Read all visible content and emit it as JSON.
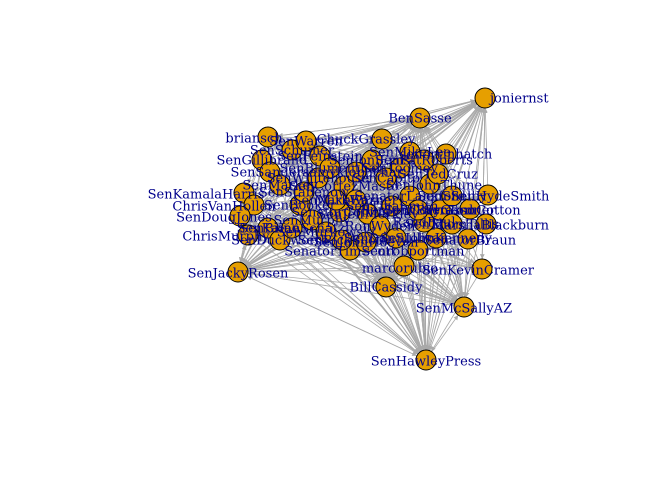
{
  "colors": {
    "node_fill": "#e69f00",
    "node_border": "#000000",
    "edge": "#a9a9a9",
    "label": "#00008b",
    "background": "#ffffff"
  },
  "graph": {
    "type": "network",
    "directed": true,
    "labeled_nodes": [
      {
        "id": "joniernst",
        "label": "joniernst"
      },
      {
        "id": "bensasse",
        "label": "BenSasse"
      },
      {
        "id": "briansch",
        "label": "briansch"
      },
      {
        "id": "chuckgrassley",
        "label": "ChuckGrassley"
      },
      {
        "id": "senjackyrosen",
        "label": "SenJackyRosen"
      },
      {
        "id": "chrismurphy",
        "label": "ChrisMurphy"
      },
      {
        "id": "billcassidy",
        "label": "BillCassidy"
      },
      {
        "id": "senmcsallyaz",
        "label": "SenMcSallyAZ"
      },
      {
        "id": "senhawleypress",
        "label": "SenHawleyPress"
      },
      {
        "id": "marcorubio",
        "label": "marcorubio"
      },
      {
        "id": "kevincramer",
        "label": "SenKevinCramer"
      },
      {
        "id": "mikebraun",
        "label": "SenatorBraun"
      },
      {
        "id": "blackburn",
        "label": "MarshaBlackburn"
      },
      {
        "id": "cotton",
        "label": "SenTomCotton"
      },
      {
        "id": "cindyhydesmith",
        "label": "SenHydeSmith"
      },
      {
        "id": "timscott",
        "label": "SenatorTimScott"
      },
      {
        "id": "senrobportman",
        "label": "senrobportman"
      },
      {
        "id": "senjohnthune",
        "label": "SenJohnThune"
      },
      {
        "id": "sentedcruz",
        "label": "SenTedCruz"
      },
      {
        "id": "senkamalaharris",
        "label": "SenKamalaHarris"
      },
      {
        "id": "chrisvanhollen",
        "label": "ChrisVanHollen"
      },
      {
        "id": "sendougjones",
        "label": "SenDougJones"
      },
      {
        "id": "sengillibrand",
        "label": "SenGillibrand"
      },
      {
        "id": "sensanders",
        "label": "SenSanders"
      },
      {
        "id": "senmarkey",
        "label": "SenMarkey"
      },
      {
        "id": "senschumer",
        "label": "SenSchumer"
      },
      {
        "id": "senwarren",
        "label": "SenWarren"
      },
      {
        "id": "senfeinstein",
        "label": "SenFeinstein"
      },
      {
        "id": "senmikelee",
        "label": "SenMikeLee"
      },
      {
        "id": "senorrinhatch",
        "label": "senorrinhatch"
      },
      {
        "id": "sentoomey",
        "label": "SenToomey"
      },
      {
        "id": "senjoniernst",
        "label": "SenJoniErnst"
      },
      {
        "id": "sencapito",
        "label": "SenCapito"
      },
      {
        "id": "senatorlankford",
        "label": "SenatorLankford"
      },
      {
        "id": "senrickscott",
        "label": "SenRickScott"
      },
      {
        "id": "senbooker",
        "label": "SenBooker"
      },
      {
        "id": "senmurphy",
        "label": "SenMurphy"
      },
      {
        "id": "senmurkowski",
        "label": "SenMurkowski"
      },
      {
        "id": "senatorcollins",
        "label": "SenatorCollins"
      },
      {
        "id": "senkaine",
        "label": "SenKaine"
      },
      {
        "id": "senduckworth",
        "label": "SenDuckworth"
      },
      {
        "id": "senbrianschatz",
        "label": "SenBrianSchatz"
      },
      {
        "id": "senstabenow",
        "label": "SenStabenow"
      },
      {
        "id": "senwhitehouse",
        "label": "SenWhitehouse"
      },
      {
        "id": "senblumenthal",
        "label": "SenBlumenthal"
      },
      {
        "id": "sencortezmasto",
        "label": "SenCortezMasto"
      },
      {
        "id": "senmarkwarner",
        "label": "MarkWarner"
      },
      {
        "id": "senjeffmerkley",
        "label": "SenJeffMerkley"
      },
      {
        "id": "senronwyden",
        "label": "RonWyden"
      },
      {
        "id": "sentinasmith",
        "label": "SenTinaSmith"
      },
      {
        "id": "senamyklobuchar",
        "label": "amyklobuchar"
      },
      {
        "id": "sencorygardner",
        "label": "SenCoryGardner"
      },
      {
        "id": "senthomtillis",
        "label": "SenThomTillis"
      },
      {
        "id": "senrandpaul",
        "label": "RandPaul"
      },
      {
        "id": "senjohnkennedy",
        "label": "SenJohnKennedy"
      },
      {
        "id": "sendansullivan",
        "label": "SenDanSullivan"
      },
      {
        "id": "senjohnhoeven",
        "label": "SenJohnHoeven"
      },
      {
        "id": "senshelby",
        "label": "SenShelby"
      },
      {
        "id": "senjohnbarrasso",
        "label": "SenJohnBarrasso"
      },
      {
        "id": "senmikeenzi",
        "label": "SenMikeEnzi"
      },
      {
        "id": "senpatroberts",
        "label": "SenPatRoberts"
      }
    ]
  }
}
